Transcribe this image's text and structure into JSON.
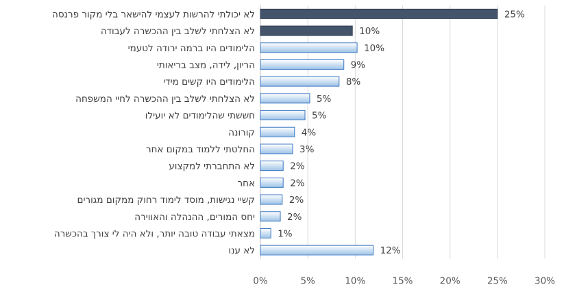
{
  "chart_data": {
    "type": "bar",
    "orientation": "horizontal",
    "categories": [
      "לא יכולתי להרשות לעצמי להישאר בלי מקור פרנסה",
      "לא הצלחתי לשלב בין ההכשרה לעבודה",
      "הלימודים היו ברמה ירודה לטעמי",
      "הריון, לידה, מצב בריאותי",
      "הלימודים היו קשים מידי",
      "לא הצלחתי לשלב בין ההכשרה לחיי המשפחה",
      "חששתי שהלימודים לא יועילו",
      "קורונה",
      "החלטתי ללמוד במקום אחר",
      "לא התחברתי למקצוע",
      "אחר",
      "קשיי נגישות, מוסד לימוד רחוק ממקום מגורים",
      "יחס המורים, ההנהלה והאווירה",
      "מצאתי עבודה טובה יותר, ולא היה לי צורך בהכשרה",
      "לא ענו"
    ],
    "values": [
      25,
      9.7,
      10.2,
      8.8,
      8.3,
      5.2,
      4.7,
      3.6,
      3.4,
      2.4,
      2.4,
      2.3,
      2.1,
      1.1,
      11.9
    ],
    "value_labels": [
      "25%",
      "10%",
      "10%",
      "9%",
      "8%",
      "5%",
      "5%",
      "4%",
      "3%",
      "2%",
      "2%",
      "2%",
      "2%",
      "1%",
      "12%"
    ],
    "highlight": [
      true,
      true,
      false,
      false,
      false,
      false,
      false,
      false,
      false,
      false,
      false,
      false,
      false,
      false,
      false
    ],
    "xlim": [
      0,
      30
    ],
    "x_ticks": [
      "0%",
      "5%",
      "10%",
      "15%",
      "20%",
      "25%",
      "30%"
    ],
    "x_tick_values": [
      0,
      5,
      10,
      15,
      20,
      25,
      30
    ],
    "grid": true,
    "colors": {
      "highlight": "#44546a",
      "bar_gradient_light": "#ffffff",
      "bar_gradient_dark": "#9dc3e6",
      "bar_border": "#3b76c4"
    }
  }
}
